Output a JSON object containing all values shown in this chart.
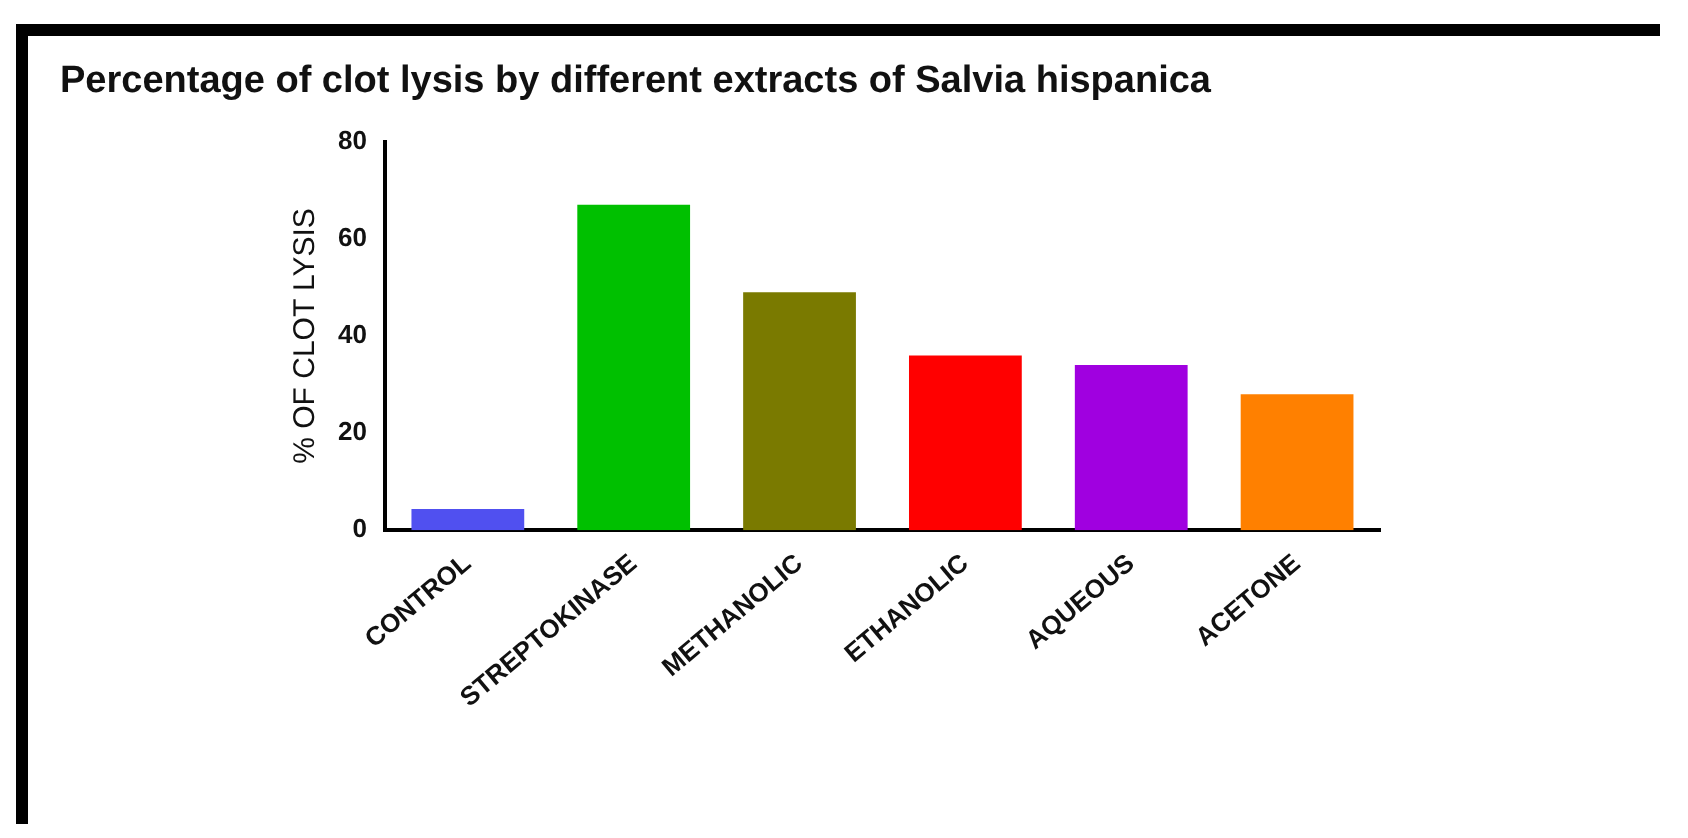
{
  "chart_data": {
    "type": "bar",
    "title": "Percentage of clot lysis by different extracts of Salvia hispanica",
    "ylabel": "% OF CLOT LYSIS",
    "categories": [
      "CONTROL",
      "STREPTOKINASE",
      "METHANOLIC",
      "ETHANOLIC",
      "AQUEOUS",
      "ACETONE"
    ],
    "values": [
      4.4,
      67,
      49,
      36,
      34,
      28
    ],
    "colors": [
      "#5050f0",
      "#00c000",
      "#7a7a00",
      "#ff0000",
      "#a000e0",
      "#ff8000"
    ],
    "ylim": [
      0,
      80
    ],
    "yticks": [
      0,
      20,
      40,
      60,
      80
    ],
    "grid": false,
    "legend": false
  }
}
